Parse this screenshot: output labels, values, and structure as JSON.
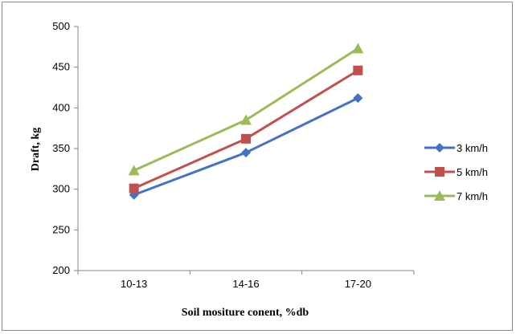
{
  "chart_data": {
    "type": "line",
    "title": "",
    "xlabel": "Soil mositure conent, %db",
    "ylabel": "Draft, kg",
    "categories": [
      "10-13",
      "14-16",
      "17-20"
    ],
    "ylim": [
      200,
      500
    ],
    "yticks": [
      200,
      250,
      300,
      350,
      400,
      450,
      500
    ],
    "grid": false,
    "legend_position": "right",
    "series": [
      {
        "name": "3 km/h",
        "values": [
          293,
          345,
          412
        ],
        "color": "#4472C4",
        "marker": "diamond"
      },
      {
        "name": "5 km/h",
        "values": [
          301,
          362,
          446
        ],
        "color": "#C0504D",
        "marker": "square"
      },
      {
        "name": "7 km/h",
        "values": [
          323,
          385,
          473
        ],
        "color": "#9BBB59",
        "marker": "triangle"
      }
    ]
  }
}
